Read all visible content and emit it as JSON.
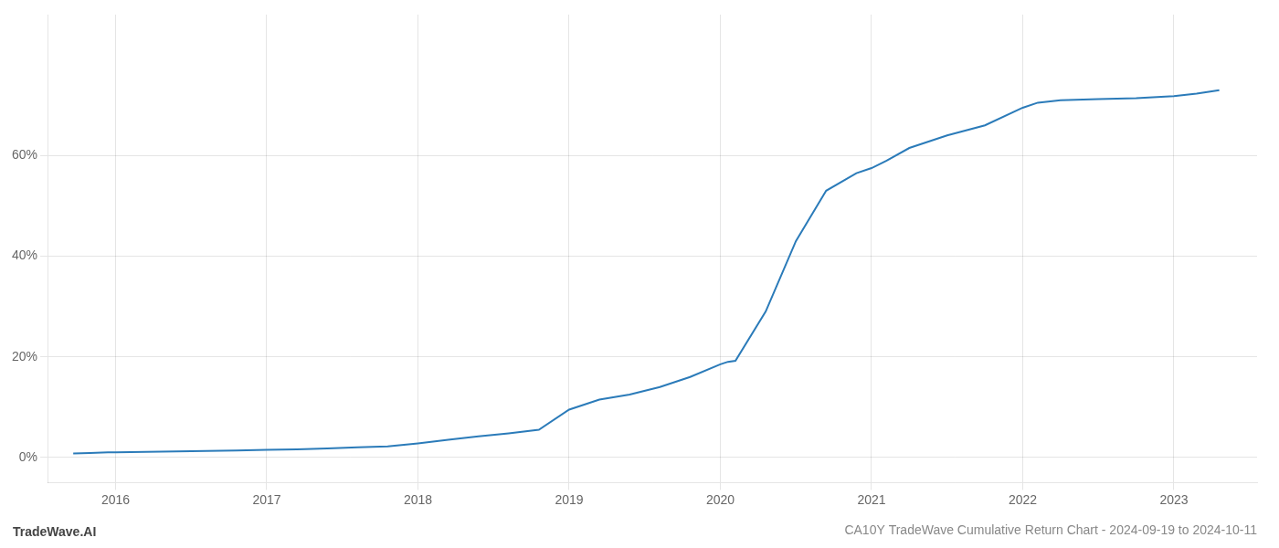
{
  "chart_data": {
    "type": "line",
    "title": "CA10Y TradeWave Cumulative Return Chart - 2024-09-19 to 2024-10-11",
    "annotations": [
      "TradeWave.AI"
    ],
    "color": "#2b7bb9",
    "x": [
      2015.72,
      2015.83,
      2015.95,
      2016.0,
      2016.2,
      2016.4,
      2016.6,
      2016.8,
      2017.0,
      2017.2,
      2017.4,
      2017.6,
      2017.8,
      2018.0,
      2018.2,
      2018.4,
      2018.6,
      2018.8,
      2019.0,
      2019.2,
      2019.4,
      2019.6,
      2019.8,
      2020.0,
      2020.05,
      2020.1,
      2020.3,
      2020.5,
      2020.7,
      2020.9,
      2021.0,
      2021.1,
      2021.25,
      2021.5,
      2021.75,
      2022.0,
      2022.1,
      2022.25,
      2022.5,
      2022.75,
      2023.0,
      2023.15,
      2023.3
    ],
    "values": [
      0.008,
      0.009,
      0.01,
      0.01,
      0.011,
      0.012,
      0.013,
      0.014,
      0.015,
      0.016,
      0.018,
      0.02,
      0.022,
      0.028,
      0.035,
      0.042,
      0.048,
      0.055,
      0.095,
      0.115,
      0.125,
      0.14,
      0.16,
      0.185,
      0.19,
      0.192,
      0.29,
      0.43,
      0.53,
      0.565,
      0.575,
      0.59,
      0.615,
      0.64,
      0.66,
      0.695,
      0.705,
      0.71,
      0.712,
      0.714,
      0.718,
      0.723,
      0.73
    ],
    "xlim": [
      2015.55,
      2023.55
    ],
    "xticks": [
      2016,
      2017,
      2018,
      2019,
      2020,
      2021,
      2022,
      2023
    ],
    "ylim": [
      -0.05,
      0.88
    ],
    "yticks": [
      {
        "value": 0.0,
        "label": "0%"
      },
      {
        "value": 0.2,
        "label": "20%"
      },
      {
        "value": 0.4,
        "label": "40%"
      },
      {
        "value": 0.6,
        "label": "60%"
      }
    ],
    "grid": true
  }
}
